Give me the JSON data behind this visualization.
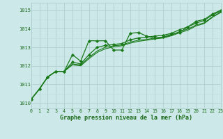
{
  "x": [
    0,
    1,
    2,
    3,
    4,
    5,
    6,
    7,
    8,
    9,
    10,
    11,
    12,
    13,
    14,
    15,
    16,
    17,
    18,
    19,
    20,
    21,
    22,
    23
  ],
  "series1": [
    1010.2,
    1010.75,
    1011.4,
    1011.7,
    1011.7,
    1012.6,
    1012.25,
    1013.35,
    1013.35,
    1013.35,
    1012.85,
    1012.85,
    1013.75,
    1013.8,
    1013.6,
    1013.5,
    1013.55,
    1013.7,
    1013.8,
    1014.1,
    1014.4,
    1014.5,
    1014.8,
    1015.0
  ],
  "series2": [
    1010.2,
    1010.75,
    1011.4,
    1011.7,
    1011.7,
    1012.2,
    1012.1,
    1012.6,
    1013.0,
    1013.1,
    1013.15,
    1013.2,
    1013.4,
    1013.5,
    1013.55,
    1013.6,
    1013.65,
    1013.75,
    1013.95,
    1014.1,
    1014.3,
    1014.45,
    1014.75,
    1014.95
  ],
  "series3": [
    1010.2,
    1010.75,
    1011.4,
    1011.7,
    1011.7,
    1012.1,
    1012.05,
    1012.45,
    1012.8,
    1013.0,
    1013.08,
    1013.12,
    1013.28,
    1013.38,
    1013.42,
    1013.5,
    1013.53,
    1013.65,
    1013.85,
    1013.98,
    1014.2,
    1014.32,
    1014.65,
    1014.9
  ],
  "series4": [
    1010.2,
    1010.75,
    1011.4,
    1011.7,
    1011.7,
    1012.05,
    1012.0,
    1012.38,
    1012.72,
    1012.92,
    1013.02,
    1013.08,
    1013.22,
    1013.32,
    1013.38,
    1013.45,
    1013.5,
    1013.62,
    1013.78,
    1013.92,
    1014.15,
    1014.28,
    1014.62,
    1014.88
  ],
  "line_color": "#1a7a1a",
  "bg_color": "#cce8e8",
  "grid_color_major": "#aacccc",
  "grid_color_minor": "#c0dada",
  "axis_label_color": "#1a6a1a",
  "xlabel": "Graphe pression niveau de la mer (hPa)",
  "ylim": [
    1009.7,
    1015.4
  ],
  "xlim": [
    0,
    23
  ],
  "yticks": [
    1010,
    1011,
    1012,
    1013,
    1014,
    1015
  ],
  "xticks": [
    0,
    1,
    2,
    3,
    4,
    5,
    6,
    7,
    8,
    9,
    10,
    11,
    12,
    13,
    14,
    15,
    16,
    17,
    18,
    19,
    20,
    21,
    22,
    23
  ]
}
